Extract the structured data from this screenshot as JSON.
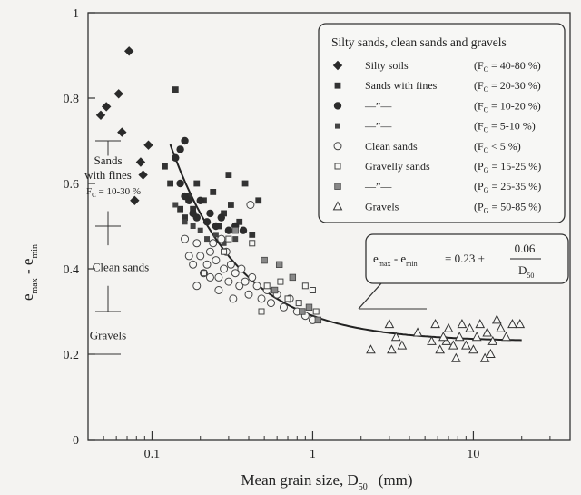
{
  "chart_data": {
    "type": "scatter",
    "xscale": "log",
    "xlim": [
      0.04,
      40
    ],
    "ylim": [
      0,
      1.0
    ],
    "xlabel": "Mean grain size,  D",
    "xlabel_sub": "50",
    "xlabel_unit": "(mm)",
    "ylabel_parts": [
      "e",
      "max",
      " - e",
      "min"
    ],
    "xticks": [
      {
        "v": 0.1,
        "label": "0.1"
      },
      {
        "v": 1,
        "label": "1"
      },
      {
        "v": 10,
        "label": "10"
      }
    ],
    "yticks": [
      {
        "v": 0,
        "label": "0"
      },
      {
        "v": 0.2,
        "label": "0.2"
      },
      {
        "v": 0.4,
        "label": "0.4"
      },
      {
        "v": 0.6,
        "label": "0.6"
      },
      {
        "v": 0.8,
        "label": "0.8"
      },
      {
        "v": 1.0,
        "label": "1"
      }
    ],
    "legend": {
      "title": "Silty sands, clean sands and gravels",
      "placement": "top-right",
      "entries": [
        {
          "marker": "diamond-filled",
          "label": "Silty soils",
          "range": "(F",
          "sub": "C",
          "value": " = 40-80 %)"
        },
        {
          "marker": "square-filled",
          "label": "Sands with fines",
          "range": "(F",
          "sub": "C",
          "value": " = 20-30 %)"
        },
        {
          "marker": "circle-filled",
          "label": "—”—",
          "range": "(F",
          "sub": "C",
          "value": " = 10-20 %)"
        },
        {
          "marker": "square-filled-small",
          "label": "—”—",
          "range": "(F",
          "sub": "C",
          "value": " =  5-10 %)"
        },
        {
          "marker": "circle-open",
          "label": "Clean sands",
          "range": "(F",
          "sub": "C",
          "value": " < 5 %)"
        },
        {
          "marker": "square-open",
          "label": "Gravelly sands",
          "range": "(P",
          "sub": "G",
          "value": " = 15-25 %)"
        },
        {
          "marker": "square-gray",
          "label": "—”—",
          "range": "(P",
          "sub": "G",
          "value": " = 25-35 %)"
        },
        {
          "marker": "triangle-open",
          "label": "Gravels",
          "range": "(P",
          "sub": "G",
          "value": " = 50-85 %)"
        }
      ]
    },
    "equation": {
      "lhs_e1": "e",
      "lhs_s1": "max",
      "lhs_mid": " - e",
      "lhs_s2": "min",
      "eq": "=  0.23  +",
      "num": "0.06",
      "den": "D",
      "den_sub": "50"
    },
    "curve": {
      "formula": "0.23 + 0.06/x",
      "x_from": 0.13,
      "x_to": 20
    },
    "range_annotations": [
      {
        "label_lines": [
          "Sands",
          "with fines"
        ],
        "fc_label": "F",
        "fc_sub": "C",
        "fc_value": " = 10-30 %",
        "from": 0.5,
        "to": 0.7
      },
      {
        "label_lines": [
          "Clean sands"
        ],
        "from": 0.3,
        "to": 0.5
      },
      {
        "label_lines": [
          "Gravels"
        ],
        "from": 0.2,
        "to": 0.3
      }
    ],
    "series": [
      {
        "marker": "diamond-filled",
        "points": [
          [
            0.048,
            0.76
          ],
          [
            0.052,
            0.78
          ],
          [
            0.062,
            0.81
          ],
          [
            0.072,
            0.91
          ],
          [
            0.065,
            0.72
          ],
          [
            0.085,
            0.65
          ],
          [
            0.095,
            0.69
          ],
          [
            0.078,
            0.56
          ],
          [
            0.088,
            0.62
          ]
        ]
      },
      {
        "marker": "square-filled",
        "points": [
          [
            0.14,
            0.82
          ],
          [
            0.12,
            0.64
          ],
          [
            0.13,
            0.6
          ],
          [
            0.15,
            0.54
          ],
          [
            0.16,
            0.52
          ],
          [
            0.17,
            0.57
          ],
          [
            0.18,
            0.54
          ],
          [
            0.19,
            0.6
          ],
          [
            0.21,
            0.56
          ],
          [
            0.24,
            0.58
          ],
          [
            0.26,
            0.5
          ],
          [
            0.28,
            0.53
          ],
          [
            0.31,
            0.55
          ],
          [
            0.35,
            0.51
          ],
          [
            0.38,
            0.6
          ],
          [
            0.42,
            0.48
          ],
          [
            0.46,
            0.56
          ],
          [
            0.3,
            0.62
          ]
        ]
      },
      {
        "marker": "circle-filled",
        "points": [
          [
            0.14,
            0.66
          ],
          [
            0.15,
            0.68
          ],
          [
            0.16,
            0.7
          ],
          [
            0.15,
            0.6
          ],
          [
            0.16,
            0.57
          ],
          [
            0.17,
            0.56
          ],
          [
            0.18,
            0.53
          ],
          [
            0.19,
            0.52
          ],
          [
            0.2,
            0.56
          ],
          [
            0.22,
            0.51
          ],
          [
            0.23,
            0.53
          ],
          [
            0.25,
            0.5
          ],
          [
            0.27,
            0.52
          ],
          [
            0.3,
            0.49
          ],
          [
            0.33,
            0.5
          ],
          [
            0.37,
            0.49
          ]
        ]
      },
      {
        "marker": "square-filled-small",
        "points": [
          [
            0.14,
            0.55
          ],
          [
            0.16,
            0.51
          ],
          [
            0.18,
            0.5
          ],
          [
            0.2,
            0.49
          ],
          [
            0.22,
            0.47
          ],
          [
            0.25,
            0.48
          ],
          [
            0.28,
            0.46
          ],
          [
            0.33,
            0.47
          ]
        ]
      },
      {
        "marker": "circle-open",
        "points": [
          [
            0.16,
            0.47
          ],
          [
            0.17,
            0.43
          ],
          [
            0.18,
            0.41
          ],
          [
            0.19,
            0.46
          ],
          [
            0.2,
            0.43
          ],
          [
            0.21,
            0.39
          ],
          [
            0.22,
            0.41
          ],
          [
            0.23,
            0.44
          ],
          [
            0.24,
            0.46
          ],
          [
            0.25,
            0.42
          ],
          [
            0.26,
            0.38
          ],
          [
            0.27,
            0.47
          ],
          [
            0.28,
            0.4
          ],
          [
            0.29,
            0.44
          ],
          [
            0.3,
            0.37
          ],
          [
            0.31,
            0.41
          ],
          [
            0.33,
            0.39
          ],
          [
            0.35,
            0.36
          ],
          [
            0.36,
            0.4
          ],
          [
            0.38,
            0.37
          ],
          [
            0.4,
            0.34
          ],
          [
            0.42,
            0.38
          ],
          [
            0.45,
            0.36
          ],
          [
            0.48,
            0.33
          ],
          [
            0.52,
            0.35
          ],
          [
            0.55,
            0.32
          ],
          [
            0.6,
            0.34
          ],
          [
            0.66,
            0.31
          ],
          [
            0.72,
            0.33
          ],
          [
            0.8,
            0.3
          ],
          [
            0.9,
            0.29
          ],
          [
            1.0,
            0.28
          ],
          [
            0.19,
            0.36
          ],
          [
            0.26,
            0.35
          ],
          [
            0.32,
            0.33
          ],
          [
            0.23,
            0.38
          ],
          [
            0.41,
            0.55
          ]
        ]
      },
      {
        "marker": "square-open",
        "points": [
          [
            0.21,
            0.39
          ],
          [
            0.3,
            0.47
          ],
          [
            0.42,
            0.46
          ],
          [
            0.52,
            0.36
          ],
          [
            0.63,
            0.37
          ],
          [
            0.7,
            0.33
          ],
          [
            0.82,
            0.32
          ],
          [
            0.9,
            0.36
          ],
          [
            1.0,
            0.35
          ],
          [
            1.05,
            0.3
          ],
          [
            0.48,
            0.3
          ],
          [
            0.28,
            0.44
          ]
        ]
      },
      {
        "marker": "square-gray",
        "points": [
          [
            0.33,
            0.49
          ],
          [
            0.5,
            0.42
          ],
          [
            0.58,
            0.35
          ],
          [
            0.62,
            0.41
          ],
          [
            0.75,
            0.38
          ],
          [
            0.86,
            0.3
          ],
          [
            0.95,
            0.31
          ],
          [
            1.08,
            0.28
          ]
        ]
      },
      {
        "marker": "triangle-open",
        "points": [
          [
            2.3,
            0.21
          ],
          [
            3.0,
            0.27
          ],
          [
            3.3,
            0.24
          ],
          [
            3.6,
            0.22
          ],
          [
            4.5,
            0.25
          ],
          [
            5.5,
            0.23
          ],
          [
            5.8,
            0.27
          ],
          [
            6.2,
            0.21
          ],
          [
            6.8,
            0.23
          ],
          [
            7.0,
            0.26
          ],
          [
            7.5,
            0.22
          ],
          [
            7.8,
            0.19
          ],
          [
            8.2,
            0.24
          ],
          [
            8.5,
            0.27
          ],
          [
            9.0,
            0.22
          ],
          [
            9.5,
            0.26
          ],
          [
            10.0,
            0.21
          ],
          [
            10.5,
            0.24
          ],
          [
            11.0,
            0.27
          ],
          [
            11.8,
            0.19
          ],
          [
            12.2,
            0.25
          ],
          [
            12.8,
            0.2
          ],
          [
            13.2,
            0.23
          ],
          [
            14.0,
            0.28
          ],
          [
            14.8,
            0.26
          ],
          [
            16.0,
            0.24
          ],
          [
            17.5,
            0.27
          ],
          [
            19.5,
            0.27
          ],
          [
            3.1,
            0.21
          ],
          [
            6.5,
            0.24
          ]
        ]
      }
    ]
  }
}
